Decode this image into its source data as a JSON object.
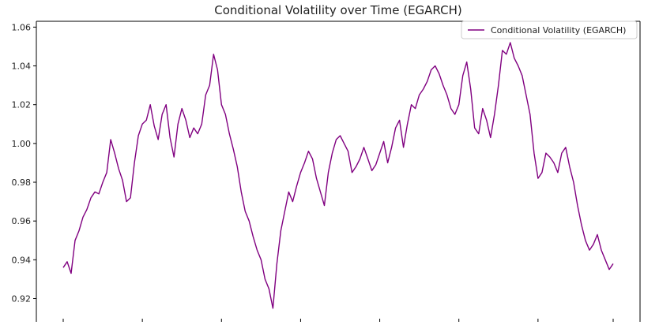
{
  "chart_data": {
    "type": "line",
    "title": "Conditional Volatility over Time (EGARCH)",
    "xlabel": "",
    "ylabel": "",
    "ylim": [
      0.908,
      1.063
    ],
    "yticks": [
      0.92,
      0.94,
      0.96,
      0.98,
      1.0,
      1.02,
      1.04,
      1.06
    ],
    "ytick_labels": [
      "0.92",
      "0.94",
      "0.96",
      "0.98",
      "1.00",
      "1.02",
      "1.04",
      "1.06"
    ],
    "grid": false,
    "legend_position": "top-right",
    "series": [
      {
        "name": "Conditional Volatility (EGARCH)",
        "color": "#800080",
        "x": [
          0,
          5,
          10,
          15,
          20,
          25,
          30,
          35,
          40,
          45,
          50,
          55,
          60,
          65,
          70,
          75,
          80,
          85,
          90,
          95,
          100,
          105,
          110,
          115,
          120,
          125,
          130,
          135,
          140,
          145,
          150,
          155,
          160,
          165,
          170,
          175,
          180,
          185,
          190,
          195,
          200,
          205,
          210,
          215,
          220,
          225,
          230,
          235,
          240,
          245,
          250,
          255,
          260,
          265,
          270,
          275,
          280,
          285,
          290,
          295,
          300,
          305,
          310,
          315,
          320,
          325,
          330,
          335,
          340,
          345,
          350,
          355,
          360,
          365,
          370,
          375,
          380,
          385,
          390,
          395,
          400,
          405,
          410,
          415,
          420,
          425,
          430,
          435,
          440,
          445,
          450,
          455,
          460,
          465,
          470,
          475,
          480,
          485,
          490,
          495,
          500,
          505,
          510,
          515,
          520,
          525,
          530,
          535,
          540,
          545,
          550,
          555,
          560,
          565,
          570,
          575,
          580,
          585,
          590,
          595,
          600,
          605,
          610,
          615,
          620,
          625,
          630,
          635,
          640,
          645,
          650,
          655,
          660,
          665,
          670,
          675,
          680,
          685,
          690,
          695
        ],
        "values": [
          0.936,
          0.939,
          0.933,
          0.95,
          0.955,
          0.962,
          0.966,
          0.972,
          0.975,
          0.974,
          0.98,
          0.985,
          1.002,
          0.995,
          0.987,
          0.981,
          0.97,
          0.972,
          0.99,
          1.004,
          1.01,
          1.012,
          1.02,
          1.009,
          1.002,
          1.015,
          1.02,
          1.003,
          0.993,
          1.01,
          1.018,
          1.012,
          1.003,
          1.008,
          1.005,
          1.01,
          1.025,
          1.03,
          1.046,
          1.038,
          1.02,
          1.015,
          1.005,
          0.997,
          0.988,
          0.975,
          0.965,
          0.96,
          0.952,
          0.945,
          0.94,
          0.93,
          0.925,
          0.915,
          0.938,
          0.955,
          0.965,
          0.975,
          0.97,
          0.978,
          0.985,
          0.99,
          0.996,
          0.992,
          0.982,
          0.975,
          0.968,
          0.985,
          0.995,
          1.002,
          1.004,
          1.0,
          0.996,
          0.985,
          0.988,
          0.992,
          0.998,
          0.992,
          0.986,
          0.989,
          0.995,
          1.001,
          0.99,
          0.998,
          1.008,
          1.012,
          0.998,
          1.01,
          1.02,
          1.018,
          1.025,
          1.028,
          1.032,
          1.038,
          1.04,
          1.036,
          1.03,
          1.025,
          1.018,
          1.015,
          1.02,
          1.035,
          1.042,
          1.028,
          1.008,
          1.005,
          1.018,
          1.012,
          1.003,
          1.015,
          1.03,
          1.048,
          1.046,
          1.052,
          1.044,
          1.04,
          1.035,
          1.025,
          1.015,
          0.995,
          0.982,
          0.985,
          0.995,
          0.993,
          0.99,
          0.985,
          0.995,
          0.998,
          0.988,
          0.98,
          0.968,
          0.958,
          0.95,
          0.945,
          0.948,
          0.953,
          0.945,
          0.94,
          0.935,
          0.938
        ]
      }
    ]
  }
}
